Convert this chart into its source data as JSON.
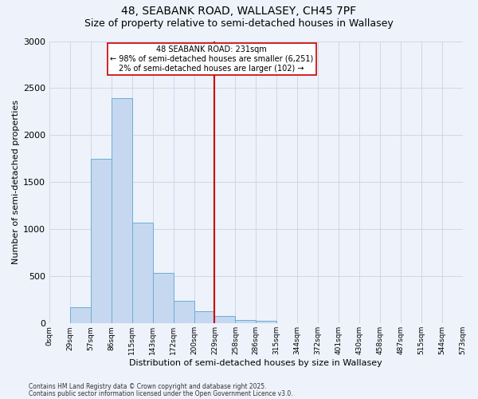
{
  "title1": "48, SEABANK ROAD, WALLASEY, CH45 7PF",
  "title2": "Size of property relative to semi-detached houses in Wallasey",
  "xlabel": "Distribution of semi-detached houses by size in Wallasey",
  "ylabel": "Number of semi-detached properties",
  "bar_values": [
    0,
    175,
    1750,
    2390,
    1070,
    540,
    240,
    130,
    75,
    40,
    25,
    0,
    0,
    0,
    0,
    0,
    0,
    0,
    0,
    0
  ],
  "bin_labels": [
    "0sqm",
    "29sqm",
    "57sqm",
    "86sqm",
    "115sqm",
    "143sqm",
    "172sqm",
    "200sqm",
    "229sqm",
    "258sqm",
    "286sqm",
    "315sqm",
    "344sqm",
    "372sqm",
    "401sqm",
    "430sqm",
    "458sqm",
    "487sqm",
    "515sqm",
    "544sqm",
    "573sqm"
  ],
  "bar_color": "#c5d8f0",
  "bar_edge_color": "#6aaed6",
  "vline_color": "#cc0000",
  "annotation_text": "48 SEABANK ROAD: 231sqm\n← 98% of semi-detached houses are smaller (6,251)\n2% of semi-detached houses are larger (102) →",
  "annotation_box_color": "#cc0000",
  "ylim": [
    0,
    3000
  ],
  "yticks": [
    0,
    500,
    1000,
    1500,
    2000,
    2500,
    3000
  ],
  "footnote1": "Contains HM Land Registry data © Crown copyright and database right 2025.",
  "footnote2": "Contains public sector information licensed under the Open Government Licence v3.0.",
  "bg_color": "#eef2fa",
  "grid_color": "#c8d4e8",
  "title1_fontsize": 10,
  "title2_fontsize": 9,
  "vline_x_data": 8.0
}
